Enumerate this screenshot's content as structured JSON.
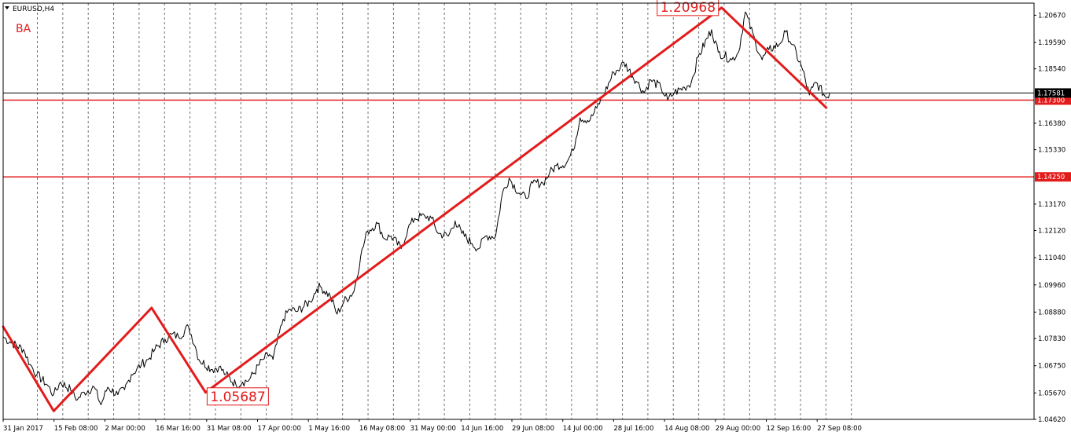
{
  "window": {
    "symbol_label": "EURUSD,H4",
    "corner_label": "BA"
  },
  "colors": {
    "background": "#ffffff",
    "frame": "#000000",
    "price_line": "#000000",
    "grid": "#000000",
    "accent_red": "#e31b1b",
    "bid_box": "#000000",
    "level_box": "#e31b1b"
  },
  "chart_data": {
    "type": "line",
    "symbol": "EURUSD",
    "timeframe": "H4",
    "ylim": [
      1.0462,
      1.2115
    ],
    "y_ticks": [
      "1.20670",
      "1.19590",
      "1.18540",
      "1.16380",
      "1.15330",
      "1.13170",
      "1.12120",
      "1.11040",
      "1.09960",
      "1.08880",
      "1.07830",
      "1.06750",
      "1.05670",
      "1.04620"
    ],
    "x_ticks": [
      "31 Jan 2017",
      "15 Feb 08:00",
      "2 Mar 00:00",
      "16 Mar 16:00",
      "31 Mar 08:00",
      "17 Apr 00:00",
      "1 May 16:00",
      "16 May 08:00",
      "31 May 00:00",
      "14 Jun 16:00",
      "29 Jun 08:00",
      "14 Jul 00:00",
      "28 Jul 16:00",
      "14 Aug 08:00",
      "29 Aug 00:00",
      "12 Sep 16:00",
      "27 Sep 08:00"
    ],
    "current_price": "1.17581",
    "horizontal_levels": [
      "1.17300",
      "1.14250"
    ],
    "zigzag": [
      {
        "date": "2017-01-31",
        "price": 1.083
      },
      {
        "date": "2017-02-15",
        "price": 1.0495
      },
      {
        "date": "2017-03-16",
        "price": 1.0905
      },
      {
        "date": "2017-04-01",
        "price": 1.0569
      },
      {
        "date": "2017-09-01",
        "price": 1.2097
      },
      {
        "date": "2017-10-02",
        "price": 1.17
      }
    ],
    "annotations": [
      {
        "text": "1.05687",
        "date": "2017-04-01",
        "price": 1.05687
      },
      {
        "text": "1.20968",
        "date": "2017-09-01",
        "price": 1.20968
      }
    ],
    "series": [
      {
        "values": [
          [
            "2017-01-31",
            1.079
          ],
          [
            "2017-02-02",
            1.077
          ],
          [
            "2017-02-06",
            1.074
          ],
          [
            "2017-02-08",
            1.068
          ],
          [
            "2017-02-10",
            1.064
          ],
          [
            "2017-02-13",
            1.06
          ],
          [
            "2017-02-15",
            1.056
          ],
          [
            "2017-02-17",
            1.061
          ],
          [
            "2017-02-20",
            1.058
          ],
          [
            "2017-02-22",
            1.054
          ],
          [
            "2017-02-24",
            1.057
          ],
          [
            "2017-02-27",
            1.059
          ],
          [
            "2017-03-01",
            1.052
          ],
          [
            "2017-03-03",
            1.059
          ],
          [
            "2017-03-06",
            1.056
          ],
          [
            "2017-03-08",
            1.058
          ],
          [
            "2017-03-10",
            1.064
          ],
          [
            "2017-03-13",
            1.068
          ],
          [
            "2017-03-15",
            1.07
          ],
          [
            "2017-03-17",
            1.074
          ],
          [
            "2017-03-20",
            1.078
          ],
          [
            "2017-03-22",
            1.08
          ],
          [
            "2017-03-24",
            1.079
          ],
          [
            "2017-03-27",
            1.083
          ],
          [
            "2017-03-29",
            1.075
          ],
          [
            "2017-03-30",
            1.07
          ],
          [
            "2017-04-03",
            1.066
          ],
          [
            "2017-04-05",
            1.067
          ],
          [
            "2017-04-07",
            1.064
          ],
          [
            "2017-04-10",
            1.06
          ],
          [
            "2017-04-12",
            1.061
          ],
          [
            "2017-04-14",
            1.062
          ],
          [
            "2017-04-18",
            1.07
          ],
          [
            "2017-04-20",
            1.072
          ],
          [
            "2017-04-21",
            1.07
          ],
          [
            "2017-04-24",
            1.086
          ],
          [
            "2017-04-26",
            1.09
          ],
          [
            "2017-04-28",
            1.089
          ],
          [
            "2017-05-02",
            1.093
          ],
          [
            "2017-05-04",
            1.098
          ],
          [
            "2017-05-05",
            1.099
          ],
          [
            "2017-05-08",
            1.095
          ],
          [
            "2017-05-10",
            1.088
          ],
          [
            "2017-05-12",
            1.093
          ],
          [
            "2017-05-15",
            1.097
          ],
          [
            "2017-05-17",
            1.111
          ],
          [
            "2017-05-19",
            1.121
          ],
          [
            "2017-05-22",
            1.124
          ],
          [
            "2017-05-24",
            1.118
          ],
          [
            "2017-05-26",
            1.119
          ],
          [
            "2017-05-29",
            1.114
          ],
          [
            "2017-05-31",
            1.122
          ],
          [
            "2017-06-02",
            1.126
          ],
          [
            "2017-06-05",
            1.127
          ],
          [
            "2017-06-07",
            1.126
          ],
          [
            "2017-06-09",
            1.12
          ],
          [
            "2017-06-12",
            1.119
          ],
          [
            "2017-06-14",
            1.125
          ],
          [
            "2017-06-16",
            1.12
          ],
          [
            "2017-06-19",
            1.116
          ],
          [
            "2017-06-21",
            1.114
          ],
          [
            "2017-06-23",
            1.119
          ],
          [
            "2017-06-26",
            1.119
          ],
          [
            "2017-06-28",
            1.136
          ],
          [
            "2017-06-30",
            1.142
          ],
          [
            "2017-07-03",
            1.136
          ],
          [
            "2017-07-05",
            1.134
          ],
          [
            "2017-07-07",
            1.14
          ],
          [
            "2017-07-10",
            1.14
          ],
          [
            "2017-07-12",
            1.144
          ],
          [
            "2017-07-14",
            1.147
          ],
          [
            "2017-07-17",
            1.148
          ],
          [
            "2017-07-19",
            1.153
          ],
          [
            "2017-07-21",
            1.166
          ],
          [
            "2017-07-24",
            1.165
          ],
          [
            "2017-07-26",
            1.17
          ],
          [
            "2017-07-28",
            1.175
          ],
          [
            "2017-07-31",
            1.184
          ],
          [
            "2017-08-02",
            1.186
          ],
          [
            "2017-08-03",
            1.188
          ],
          [
            "2017-08-07",
            1.18
          ],
          [
            "2017-08-09",
            1.176
          ],
          [
            "2017-08-11",
            1.181
          ],
          [
            "2017-08-14",
            1.178
          ],
          [
            "2017-08-16",
            1.173
          ],
          [
            "2017-08-18",
            1.176
          ],
          [
            "2017-08-21",
            1.178
          ],
          [
            "2017-08-23",
            1.18
          ],
          [
            "2017-08-25",
            1.19
          ],
          [
            "2017-08-29",
            1.201
          ],
          [
            "2017-08-31",
            1.192
          ],
          [
            "2017-09-04",
            1.189
          ],
          [
            "2017-09-06",
            1.192
          ],
          [
            "2017-09-08",
            1.208
          ],
          [
            "2017-09-11",
            1.196
          ],
          [
            "2017-09-13",
            1.189
          ],
          [
            "2017-09-15",
            1.193
          ],
          [
            "2017-09-18",
            1.195
          ],
          [
            "2017-09-20",
            1.2
          ],
          [
            "2017-09-22",
            1.195
          ],
          [
            "2017-09-25",
            1.185
          ],
          [
            "2017-09-27",
            1.175
          ],
          [
            "2017-09-28",
            1.178
          ],
          [
            "2017-09-29",
            1.18
          ],
          [
            "2017-10-02",
            1.174
          ],
          [
            "2017-10-03",
            1.1758
          ]
        ]
      }
    ]
  }
}
